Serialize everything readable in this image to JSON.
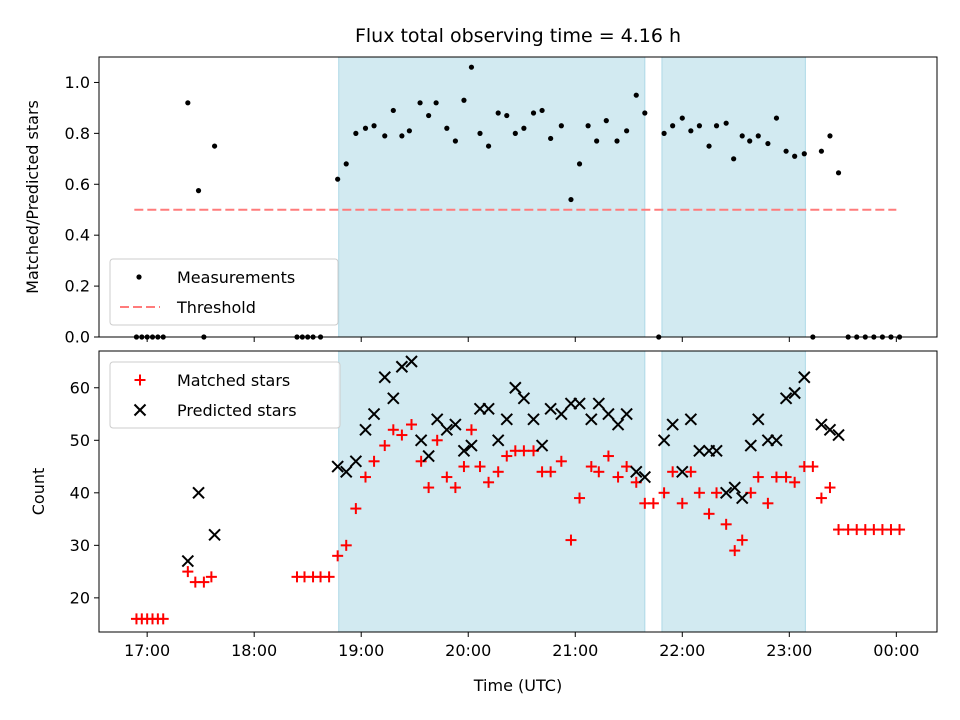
{
  "chart_data": [
    {
      "type": "scatter",
      "title": "Flux total observing time = 4.16 h",
      "xlabel": "",
      "ylabel": "Matched/Predicted stars",
      "xlim": [
        16.55,
        24.38
      ],
      "ylim": [
        0,
        1.1
      ],
      "yticks": [
        {
          "label": "0.0",
          "value": 0.0
        },
        {
          "label": "0.2",
          "value": 0.2
        },
        {
          "label": "0.4",
          "value": 0.4
        },
        {
          "label": "0.6",
          "value": 0.6
        },
        {
          "label": "0.8",
          "value": 0.8
        },
        {
          "label": "1.0",
          "value": 1.0
        }
      ],
      "shaded_intervals": [
        [
          18.79,
          21.65
        ],
        [
          21.81,
          23.15
        ]
      ],
      "shade_color": "#add8e6",
      "legend": {
        "placement": "lower-left",
        "entries": [
          "Measurements",
          "Threshold"
        ]
      },
      "series": [
        {
          "name": "Measurements",
          "marker": "dot",
          "color": "#000000",
          "points": [
            [
              16.9,
              0
            ],
            [
              16.95,
              0
            ],
            [
              17.0,
              0
            ],
            [
              17.05,
              0
            ],
            [
              17.1,
              0
            ],
            [
              17.15,
              0
            ],
            [
              17.38,
              0.92
            ],
            [
              17.48,
              0.575
            ],
            [
              17.53,
              0
            ],
            [
              17.63,
              0.75
            ],
            [
              18.4,
              0
            ],
            [
              18.45,
              0
            ],
            [
              18.5,
              0
            ],
            [
              18.55,
              0
            ],
            [
              18.62,
              0
            ],
            [
              18.78,
              0.62
            ],
            [
              18.86,
              0.68
            ],
            [
              18.95,
              0.8
            ],
            [
              19.04,
              0.82
            ],
            [
              19.12,
              0.83
            ],
            [
              19.22,
              0.79
            ],
            [
              19.3,
              0.89
            ],
            [
              19.38,
              0.79
            ],
            [
              19.45,
              0.81
            ],
            [
              19.55,
              0.92
            ],
            [
              19.63,
              0.87
            ],
            [
              19.7,
              0.92
            ],
            [
              19.8,
              0.82
            ],
            [
              19.88,
              0.77
            ],
            [
              19.96,
              0.93
            ],
            [
              20.03,
              1.06
            ],
            [
              20.11,
              0.8
            ],
            [
              20.19,
              0.75
            ],
            [
              20.28,
              0.88
            ],
            [
              20.36,
              0.87
            ],
            [
              20.44,
              0.8
            ],
            [
              20.52,
              0.82
            ],
            [
              20.61,
              0.88
            ],
            [
              20.69,
              0.89
            ],
            [
              20.77,
              0.78
            ],
            [
              20.87,
              0.83
            ],
            [
              20.96,
              0.54
            ],
            [
              21.04,
              0.68
            ],
            [
              21.12,
              0.83
            ],
            [
              21.2,
              0.77
            ],
            [
              21.29,
              0.85
            ],
            [
              21.39,
              0.77
            ],
            [
              21.48,
              0.81
            ],
            [
              21.57,
              0.95
            ],
            [
              21.65,
              0.88
            ],
            [
              21.78,
              0
            ],
            [
              21.83,
              0.8
            ],
            [
              21.91,
              0.83
            ],
            [
              22.0,
              0.86
            ],
            [
              22.08,
              0.81
            ],
            [
              22.16,
              0.83
            ],
            [
              22.25,
              0.75
            ],
            [
              22.32,
              0.83
            ],
            [
              22.41,
              0.84
            ],
            [
              22.48,
              0.7
            ],
            [
              22.56,
              0.79
            ],
            [
              22.63,
              0.77
            ],
            [
              22.71,
              0.79
            ],
            [
              22.8,
              0.76
            ],
            [
              22.88,
              0.86
            ],
            [
              22.97,
              0.73
            ],
            [
              23.05,
              0.71
            ],
            [
              23.14,
              0.72
            ],
            [
              23.22,
              0
            ],
            [
              23.3,
              0.73
            ],
            [
              23.38,
              0.79
            ],
            [
              23.46,
              0.645
            ],
            [
              23.55,
              0
            ],
            [
              23.63,
              0
            ],
            [
              23.71,
              0
            ],
            [
              23.79,
              0
            ],
            [
              23.87,
              0
            ],
            [
              23.95,
              0
            ],
            [
              24.03,
              0
            ]
          ]
        },
        {
          "name": "Threshold",
          "style": "dashed",
          "color": "#ff7b7b",
          "x": [
            16.88,
            24.0
          ],
          "y": [
            0.5,
            0.5
          ]
        }
      ]
    },
    {
      "type": "scatter",
      "title": "",
      "xlabel": "Time (UTC)",
      "ylabel": "Count",
      "xlim": [
        16.55,
        24.38
      ],
      "ylim": [
        13.5,
        67
      ],
      "xticks": [
        {
          "label": "17:00",
          "value": 17
        },
        {
          "label": "18:00",
          "value": 18
        },
        {
          "label": "19:00",
          "value": 19
        },
        {
          "label": "20:00",
          "value": 20
        },
        {
          "label": "21:00",
          "value": 21
        },
        {
          "label": "22:00",
          "value": 22
        },
        {
          "label": "23:00",
          "value": 23
        },
        {
          "label": "00:00",
          "value": 24
        }
      ],
      "yticks": [
        {
          "label": "20",
          "value": 20
        },
        {
          "label": "30",
          "value": 30
        },
        {
          "label": "40",
          "value": 40
        },
        {
          "label": "50",
          "value": 50
        },
        {
          "label": "60",
          "value": 60
        }
      ],
      "shaded_intervals": [
        [
          18.79,
          21.65
        ],
        [
          21.81,
          23.15
        ]
      ],
      "shade_color": "#add8e6",
      "legend": {
        "placement": "top-left",
        "entries": [
          "Matched stars",
          "Predicted stars"
        ]
      },
      "series": [
        {
          "name": "Matched stars",
          "marker": "plus",
          "color": "#ff0000",
          "points": [
            [
              16.9,
              16
            ],
            [
              16.95,
              16
            ],
            [
              17.0,
              16
            ],
            [
              17.05,
              16
            ],
            [
              17.1,
              16
            ],
            [
              17.15,
              16
            ],
            [
              17.38,
              25
            ],
            [
              17.45,
              23
            ],
            [
              17.53,
              23
            ],
            [
              17.6,
              24
            ],
            [
              18.4,
              24
            ],
            [
              18.47,
              24
            ],
            [
              18.55,
              24
            ],
            [
              18.62,
              24
            ],
            [
              18.7,
              24
            ],
            [
              18.78,
              28
            ],
            [
              18.86,
              30
            ],
            [
              18.95,
              37
            ],
            [
              19.04,
              43
            ],
            [
              19.12,
              46
            ],
            [
              19.22,
              49
            ],
            [
              19.3,
              52
            ],
            [
              19.38,
              51
            ],
            [
              19.47,
              53
            ],
            [
              19.56,
              46
            ],
            [
              19.63,
              41
            ],
            [
              19.71,
              50
            ],
            [
              19.8,
              43
            ],
            [
              19.88,
              41
            ],
            [
              19.96,
              45
            ],
            [
              20.03,
              52
            ],
            [
              20.11,
              45
            ],
            [
              20.19,
              42
            ],
            [
              20.28,
              44
            ],
            [
              20.36,
              47
            ],
            [
              20.44,
              48
            ],
            [
              20.52,
              48
            ],
            [
              20.61,
              48
            ],
            [
              20.69,
              44
            ],
            [
              20.77,
              44
            ],
            [
              20.87,
              46
            ],
            [
              20.96,
              31
            ],
            [
              21.04,
              39
            ],
            [
              21.15,
              45
            ],
            [
              21.22,
              44
            ],
            [
              21.31,
              47
            ],
            [
              21.4,
              43
            ],
            [
              21.48,
              45
            ],
            [
              21.57,
              42
            ],
            [
              21.65,
              38
            ],
            [
              21.73,
              38
            ],
            [
              21.83,
              40
            ],
            [
              21.91,
              44
            ],
            [
              22.0,
              38
            ],
            [
              22.08,
              44
            ],
            [
              22.16,
              40
            ],
            [
              22.25,
              36
            ],
            [
              22.32,
              40
            ],
            [
              22.41,
              34
            ],
            [
              22.49,
              29
            ],
            [
              22.56,
              31
            ],
            [
              22.64,
              40
            ],
            [
              22.71,
              43
            ],
            [
              22.8,
              38
            ],
            [
              22.88,
              43
            ],
            [
              22.97,
              43
            ],
            [
              23.05,
              42
            ],
            [
              23.14,
              45
            ],
            [
              23.22,
              45
            ],
            [
              23.3,
              39
            ],
            [
              23.38,
              41
            ],
            [
              23.46,
              33
            ],
            [
              23.55,
              33
            ],
            [
              23.63,
              33
            ],
            [
              23.71,
              33
            ],
            [
              23.79,
              33
            ],
            [
              23.87,
              33
            ],
            [
              23.95,
              33
            ],
            [
              24.03,
              33
            ]
          ]
        },
        {
          "name": "Predicted stars",
          "marker": "x",
          "color": "#000000",
          "points": [
            [
              17.38,
              27
            ],
            [
              17.48,
              40
            ],
            [
              17.63,
              32
            ],
            [
              18.78,
              45
            ],
            [
              18.86,
              44
            ],
            [
              18.95,
              46
            ],
            [
              19.04,
              52
            ],
            [
              19.12,
              55
            ],
            [
              19.22,
              62
            ],
            [
              19.3,
              58
            ],
            [
              19.38,
              64
            ],
            [
              19.47,
              65
            ],
            [
              19.56,
              50
            ],
            [
              19.63,
              47
            ],
            [
              19.71,
              54
            ],
            [
              19.8,
              52
            ],
            [
              19.88,
              53
            ],
            [
              19.96,
              48
            ],
            [
              20.03,
              49
            ],
            [
              20.11,
              56
            ],
            [
              20.19,
              56
            ],
            [
              20.28,
              50
            ],
            [
              20.36,
              54
            ],
            [
              20.44,
              60
            ],
            [
              20.52,
              58
            ],
            [
              20.61,
              54
            ],
            [
              20.69,
              49
            ],
            [
              20.77,
              56
            ],
            [
              20.87,
              55
            ],
            [
              20.96,
              57
            ],
            [
              21.04,
              57
            ],
            [
              21.15,
              54
            ],
            [
              21.22,
              57
            ],
            [
              21.31,
              55
            ],
            [
              21.4,
              53
            ],
            [
              21.48,
              55
            ],
            [
              21.57,
              44
            ],
            [
              21.65,
              43
            ],
            [
              21.83,
              50
            ],
            [
              21.91,
              53
            ],
            [
              22.0,
              44
            ],
            [
              22.08,
              54
            ],
            [
              22.16,
              48
            ],
            [
              22.25,
              48
            ],
            [
              22.32,
              48
            ],
            [
              22.41,
              40
            ],
            [
              22.49,
              41
            ],
            [
              22.56,
              39
            ],
            [
              22.64,
              49
            ],
            [
              22.71,
              54
            ],
            [
              22.8,
              50
            ],
            [
              22.88,
              50
            ],
            [
              22.97,
              58
            ],
            [
              23.05,
              59
            ],
            [
              23.14,
              62
            ],
            [
              23.3,
              53
            ],
            [
              23.38,
              52
            ],
            [
              23.46,
              51
            ]
          ]
        }
      ]
    }
  ]
}
